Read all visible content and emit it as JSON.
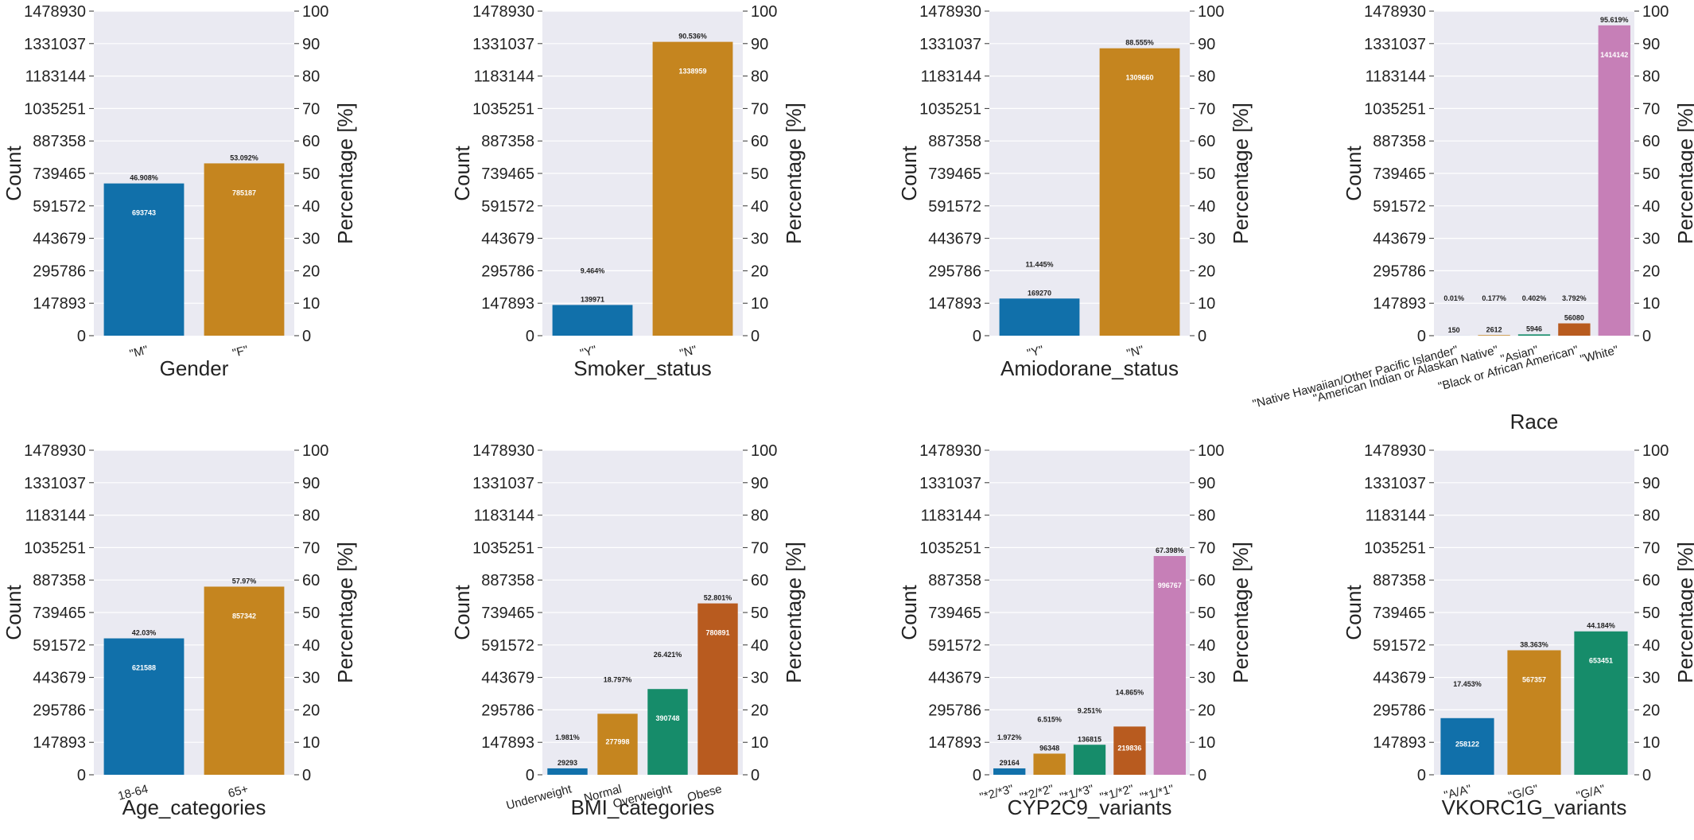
{
  "figure": {
    "left_axis_label": "Count",
    "right_axis_label": "Percentage [%]",
    "count_ticks": [
      "0",
      "147893",
      "295786",
      "443679",
      "591572",
      "739465",
      "887358",
      "1035251",
      "1183144",
      "1331037",
      "1478930"
    ],
    "percent_ticks": [
      "0",
      "10",
      "20",
      "30",
      "40",
      "50",
      "60",
      "70",
      "80",
      "90",
      "100"
    ],
    "palette": {
      "blue": "#1170aa",
      "orange": "#c5851f",
      "green": "#168c6a",
      "vermilion": "#b85b1f",
      "pink": "#c67fb7",
      "panel_bg": "#eaeaf2",
      "grid": "#ffffff"
    }
  },
  "chart_data": [
    {
      "type": "bar",
      "xlabel": "Gender",
      "ylabel": "Count",
      "ylabel_right": "Percentage [%]",
      "ylim": [
        0,
        1478930
      ],
      "ylim_right": [
        0,
        100
      ],
      "grid": true,
      "categories": [
        "\"M\"",
        "\"F\""
      ],
      "values": [
        693743,
        785187
      ],
      "value_labels": [
        "693743",
        "785187"
      ],
      "percent_labels": [
        "46.908%",
        "53.092%"
      ],
      "colors": [
        "blue",
        "orange"
      ],
      "tick_rotation": 15
    },
    {
      "type": "bar",
      "xlabel": "Smoker_status",
      "ylabel": "Count",
      "ylabel_right": "Percentage [%]",
      "ylim": [
        0,
        1478930
      ],
      "ylim_right": [
        0,
        100
      ],
      "grid": true,
      "categories": [
        "\"Y\"",
        "\"N\""
      ],
      "values": [
        139971,
        1338959
      ],
      "value_labels": [
        "139971",
        "1338959"
      ],
      "percent_labels": [
        "9.464%",
        "90.536%"
      ],
      "colors": [
        "blue",
        "orange"
      ],
      "tick_rotation": 15
    },
    {
      "type": "bar",
      "xlabel": "Amiodorane_status",
      "ylabel": "Count",
      "ylabel_right": "Percentage [%]",
      "ylim": [
        0,
        1478930
      ],
      "ylim_right": [
        0,
        100
      ],
      "grid": true,
      "categories": [
        "\"Y\"",
        "\"N\""
      ],
      "values": [
        169270,
        1309660
      ],
      "value_labels": [
        "169270",
        "1309660"
      ],
      "percent_labels": [
        "11.445%",
        "88.555%"
      ],
      "colors": [
        "blue",
        "orange"
      ],
      "tick_rotation": 15
    },
    {
      "type": "bar",
      "xlabel": "Race",
      "ylabel": "Count",
      "ylabel_right": "Percentage [%]",
      "ylim": [
        0,
        1478930
      ],
      "ylim_right": [
        0,
        100
      ],
      "grid": true,
      "categories": [
        "\"Native Hawaiian/Other Pacific Islander\"",
        "\"American Indian or Alaskan Native\"",
        "\"Asian\"",
        "\"Black or African American\"",
        "\"White\""
      ],
      "values": [
        150,
        2612,
        5946,
        56080,
        1414142
      ],
      "value_labels": [
        "150",
        "2612",
        "5946",
        "56080",
        "1414142"
      ],
      "percent_labels": [
        "0.01%",
        "0.177%",
        "0.402%",
        "3.792%",
        "95.619%"
      ],
      "colors": [
        "blue",
        "orange",
        "green",
        "vermilion",
        "pink"
      ],
      "tick_rotation": 15
    },
    {
      "type": "bar",
      "xlabel": "Age_categories",
      "ylabel": "Count",
      "ylabel_right": "Percentage [%]",
      "ylim": [
        0,
        1478930
      ],
      "ylim_right": [
        0,
        100
      ],
      "grid": true,
      "categories": [
        "18-64",
        "65+"
      ],
      "values": [
        621588,
        857342
      ],
      "value_labels": [
        "621588",
        "857342"
      ],
      "percent_labels": [
        "42.03%",
        "57.97%"
      ],
      "colors": [
        "blue",
        "orange"
      ],
      "tick_rotation": 15
    },
    {
      "type": "bar",
      "xlabel": "BMI_categories",
      "ylabel": "Count",
      "ylabel_right": "Percentage [%]",
      "ylim": [
        0,
        1478930
      ],
      "ylim_right": [
        0,
        100
      ],
      "grid": true,
      "categories": [
        "Underweight",
        "Normal",
        "Overweight",
        "Obese"
      ],
      "values": [
        29293,
        277998,
        390748,
        780891
      ],
      "value_labels": [
        "29293",
        "277998",
        "390748",
        "780891"
      ],
      "percent_labels": [
        "1.981%",
        "18.797%",
        "26.421%",
        "52.801%"
      ],
      "colors": [
        "blue",
        "orange",
        "green",
        "vermilion"
      ],
      "tick_rotation": 15
    },
    {
      "type": "bar",
      "xlabel": "CYP2C9_variants",
      "ylabel": "Count",
      "ylabel_right": "Percentage [%]",
      "ylim": [
        0,
        1478930
      ],
      "ylim_right": [
        0,
        100
      ],
      "grid": true,
      "categories": [
        "\"*2/*3\"",
        "\"*2/*2\"",
        "\"*1/*3\"",
        "\"*1/*2\"",
        "\"*1/*1\""
      ],
      "values": [
        29164,
        96348,
        136815,
        219836,
        996767
      ],
      "value_labels": [
        "29164",
        "96348",
        "136815",
        "219836",
        "996767"
      ],
      "percent_labels": [
        "1.972%",
        "6.515%",
        "9.251%",
        "14.865%",
        "67.398%"
      ],
      "colors": [
        "blue",
        "orange",
        "green",
        "vermilion",
        "pink"
      ],
      "tick_rotation": 15
    },
    {
      "type": "bar",
      "xlabel": "VKORC1G_variants",
      "ylabel": "Count",
      "ylabel_right": "Percentage [%]",
      "ylim": [
        0,
        1478930
      ],
      "ylim_right": [
        0,
        100
      ],
      "grid": true,
      "categories": [
        "\"A/A\"",
        "\"G/G\"",
        "\"G/A\""
      ],
      "values": [
        258122,
        567357,
        653451
      ],
      "value_labels": [
        "258122",
        "567357",
        "653451"
      ],
      "percent_labels": [
        "17.453%",
        "38.363%",
        "44.184%"
      ],
      "colors": [
        "blue",
        "orange",
        "green"
      ],
      "tick_rotation": 15
    }
  ]
}
